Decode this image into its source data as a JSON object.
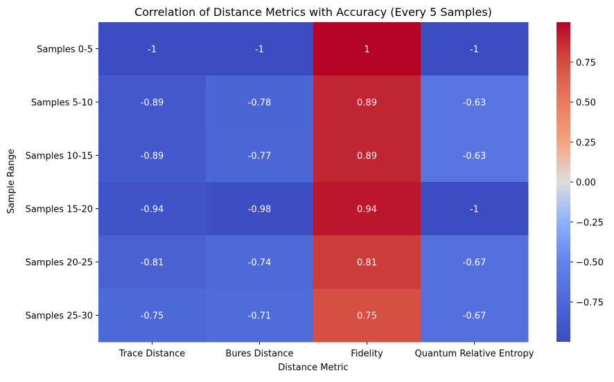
{
  "chart_data": {
    "type": "heatmap",
    "title": "Correlation of Distance Metrics with Accuracy (Every 5 Samples)",
    "xlabel": "Distance Metric",
    "ylabel": "Sample Range",
    "columns": [
      "Trace Distance",
      "Bures Distance",
      "Fidelity",
      "Quantum Relative Entropy"
    ],
    "rows": [
      "Samples 0-5",
      "Samples 5-10",
      "Samples 10-15",
      "Samples 15-20",
      "Samples 20-25",
      "Samples 25-30"
    ],
    "values": [
      [
        -1,
        -1,
        1,
        -1
      ],
      [
        -0.89,
        -0.78,
        0.89,
        -0.63
      ],
      [
        -0.89,
        -0.77,
        0.89,
        -0.63
      ],
      [
        -0.94,
        -0.98,
        0.94,
        -1
      ],
      [
        -0.81,
        -0.74,
        0.81,
        -0.67
      ],
      [
        -0.75,
        -0.71,
        0.75,
        -0.67
      ]
    ],
    "colormap": "coolwarm",
    "vmin": -1,
    "vmax": 1,
    "colorbar_ticks": [
      0.75,
      0.5,
      0.25,
      0.0,
      -0.25,
      -0.5,
      -0.75
    ],
    "colorbar_tick_labels": [
      "0.75",
      "0.50",
      "0.25",
      "0.00",
      "−0.25",
      "−0.50",
      "−0.75"
    ],
    "annotate": true,
    "grid": false
  }
}
